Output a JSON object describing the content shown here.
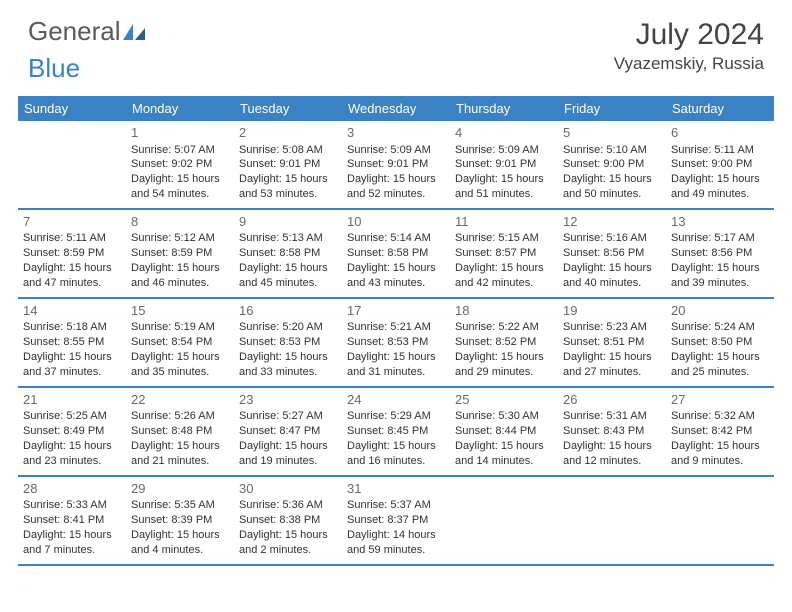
{
  "logo": {
    "word1": "General",
    "word2": "Blue"
  },
  "title": "July 2024",
  "location": "Vyazemskiy, Russia",
  "colors": {
    "header_bg": "#3b82c4",
    "header_text": "#ffffff",
    "border": "#3b82c4",
    "text": "#333333",
    "daynum": "#6a6a6a",
    "logo_gray": "#5a5a5a",
    "logo_blue": "#3b82c4"
  },
  "dow": [
    "Sunday",
    "Monday",
    "Tuesday",
    "Wednesday",
    "Thursday",
    "Friday",
    "Saturday"
  ],
  "weeks": [
    [
      {
        "n": "",
        "sr": "",
        "ss": "",
        "dl": ""
      },
      {
        "n": "1",
        "sr": "Sunrise: 5:07 AM",
        "ss": "Sunset: 9:02 PM",
        "dl": "Daylight: 15 hours and 54 minutes."
      },
      {
        "n": "2",
        "sr": "Sunrise: 5:08 AM",
        "ss": "Sunset: 9:01 PM",
        "dl": "Daylight: 15 hours and 53 minutes."
      },
      {
        "n": "3",
        "sr": "Sunrise: 5:09 AM",
        "ss": "Sunset: 9:01 PM",
        "dl": "Daylight: 15 hours and 52 minutes."
      },
      {
        "n": "4",
        "sr": "Sunrise: 5:09 AM",
        "ss": "Sunset: 9:01 PM",
        "dl": "Daylight: 15 hours and 51 minutes."
      },
      {
        "n": "5",
        "sr": "Sunrise: 5:10 AM",
        "ss": "Sunset: 9:00 PM",
        "dl": "Daylight: 15 hours and 50 minutes."
      },
      {
        "n": "6",
        "sr": "Sunrise: 5:11 AM",
        "ss": "Sunset: 9:00 PM",
        "dl": "Daylight: 15 hours and 49 minutes."
      }
    ],
    [
      {
        "n": "7",
        "sr": "Sunrise: 5:11 AM",
        "ss": "Sunset: 8:59 PM",
        "dl": "Daylight: 15 hours and 47 minutes."
      },
      {
        "n": "8",
        "sr": "Sunrise: 5:12 AM",
        "ss": "Sunset: 8:59 PM",
        "dl": "Daylight: 15 hours and 46 minutes."
      },
      {
        "n": "9",
        "sr": "Sunrise: 5:13 AM",
        "ss": "Sunset: 8:58 PM",
        "dl": "Daylight: 15 hours and 45 minutes."
      },
      {
        "n": "10",
        "sr": "Sunrise: 5:14 AM",
        "ss": "Sunset: 8:58 PM",
        "dl": "Daylight: 15 hours and 43 minutes."
      },
      {
        "n": "11",
        "sr": "Sunrise: 5:15 AM",
        "ss": "Sunset: 8:57 PM",
        "dl": "Daylight: 15 hours and 42 minutes."
      },
      {
        "n": "12",
        "sr": "Sunrise: 5:16 AM",
        "ss": "Sunset: 8:56 PM",
        "dl": "Daylight: 15 hours and 40 minutes."
      },
      {
        "n": "13",
        "sr": "Sunrise: 5:17 AM",
        "ss": "Sunset: 8:56 PM",
        "dl": "Daylight: 15 hours and 39 minutes."
      }
    ],
    [
      {
        "n": "14",
        "sr": "Sunrise: 5:18 AM",
        "ss": "Sunset: 8:55 PM",
        "dl": "Daylight: 15 hours and 37 minutes."
      },
      {
        "n": "15",
        "sr": "Sunrise: 5:19 AM",
        "ss": "Sunset: 8:54 PM",
        "dl": "Daylight: 15 hours and 35 minutes."
      },
      {
        "n": "16",
        "sr": "Sunrise: 5:20 AM",
        "ss": "Sunset: 8:53 PM",
        "dl": "Daylight: 15 hours and 33 minutes."
      },
      {
        "n": "17",
        "sr": "Sunrise: 5:21 AM",
        "ss": "Sunset: 8:53 PM",
        "dl": "Daylight: 15 hours and 31 minutes."
      },
      {
        "n": "18",
        "sr": "Sunrise: 5:22 AM",
        "ss": "Sunset: 8:52 PM",
        "dl": "Daylight: 15 hours and 29 minutes."
      },
      {
        "n": "19",
        "sr": "Sunrise: 5:23 AM",
        "ss": "Sunset: 8:51 PM",
        "dl": "Daylight: 15 hours and 27 minutes."
      },
      {
        "n": "20",
        "sr": "Sunrise: 5:24 AM",
        "ss": "Sunset: 8:50 PM",
        "dl": "Daylight: 15 hours and 25 minutes."
      }
    ],
    [
      {
        "n": "21",
        "sr": "Sunrise: 5:25 AM",
        "ss": "Sunset: 8:49 PM",
        "dl": "Daylight: 15 hours and 23 minutes."
      },
      {
        "n": "22",
        "sr": "Sunrise: 5:26 AM",
        "ss": "Sunset: 8:48 PM",
        "dl": "Daylight: 15 hours and 21 minutes."
      },
      {
        "n": "23",
        "sr": "Sunrise: 5:27 AM",
        "ss": "Sunset: 8:47 PM",
        "dl": "Daylight: 15 hours and 19 minutes."
      },
      {
        "n": "24",
        "sr": "Sunrise: 5:29 AM",
        "ss": "Sunset: 8:45 PM",
        "dl": "Daylight: 15 hours and 16 minutes."
      },
      {
        "n": "25",
        "sr": "Sunrise: 5:30 AM",
        "ss": "Sunset: 8:44 PM",
        "dl": "Daylight: 15 hours and 14 minutes."
      },
      {
        "n": "26",
        "sr": "Sunrise: 5:31 AM",
        "ss": "Sunset: 8:43 PM",
        "dl": "Daylight: 15 hours and 12 minutes."
      },
      {
        "n": "27",
        "sr": "Sunrise: 5:32 AM",
        "ss": "Sunset: 8:42 PM",
        "dl": "Daylight: 15 hours and 9 minutes."
      }
    ],
    [
      {
        "n": "28",
        "sr": "Sunrise: 5:33 AM",
        "ss": "Sunset: 8:41 PM",
        "dl": "Daylight: 15 hours and 7 minutes."
      },
      {
        "n": "29",
        "sr": "Sunrise: 5:35 AM",
        "ss": "Sunset: 8:39 PM",
        "dl": "Daylight: 15 hours and 4 minutes."
      },
      {
        "n": "30",
        "sr": "Sunrise: 5:36 AM",
        "ss": "Sunset: 8:38 PM",
        "dl": "Daylight: 15 hours and 2 minutes."
      },
      {
        "n": "31",
        "sr": "Sunrise: 5:37 AM",
        "ss": "Sunset: 8:37 PM",
        "dl": "Daylight: 14 hours and 59 minutes."
      },
      {
        "n": "",
        "sr": "",
        "ss": "",
        "dl": ""
      },
      {
        "n": "",
        "sr": "",
        "ss": "",
        "dl": ""
      },
      {
        "n": "",
        "sr": "",
        "ss": "",
        "dl": ""
      }
    ]
  ]
}
